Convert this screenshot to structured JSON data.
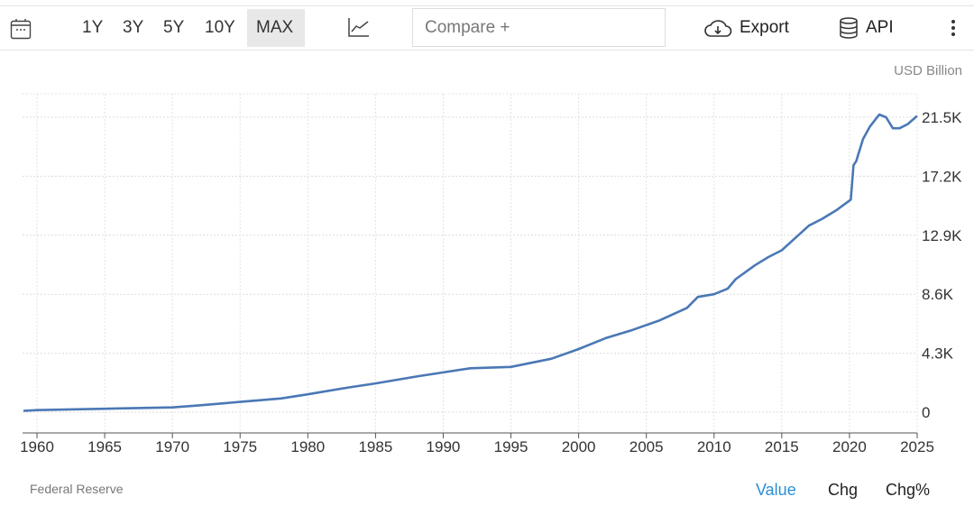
{
  "toolbar": {
    "calendar_icon": "calendar-icon",
    "ranges": [
      "1Y",
      "3Y",
      "5Y",
      "10Y",
      "MAX"
    ],
    "active_range": "MAX",
    "chart_type_icon": "line-chart-icon",
    "compare_placeholder": "Compare +",
    "export_label": "Export",
    "api_label": "API"
  },
  "unit": "USD Billion",
  "source": "Federal Reserve",
  "tabs": [
    "Value",
    "Chg",
    "Chg%"
  ],
  "active_tab": "Value",
  "colors": {
    "line": "#4a78b5",
    "active_tab": "#2a8fd8",
    "grid": "#dddddd"
  },
  "chart_data": {
    "type": "line",
    "title": "",
    "xlabel": "",
    "ylabel": "USD Billion",
    "xlim": [
      1959,
      2025.3
    ],
    "ylim": [
      0,
      21.5
    ],
    "y_ticks": [
      0,
      4.3,
      8.6,
      12.9,
      17.2,
      21.5
    ],
    "y_tick_labels": [
      "0",
      "4.3K",
      "8.6K",
      "12.9K",
      "17.2K",
      "21.5K"
    ],
    "x_ticks": [
      1960,
      1965,
      1970,
      1975,
      1980,
      1985,
      1990,
      1995,
      2000,
      2005,
      2010,
      2015,
      2020,
      2025
    ],
    "grid": true,
    "y_axis_side": "right",
    "series": [
      {
        "x": [
          1959,
          1960,
          1965,
          1970,
          1972,
          1975,
          1978,
          1980,
          1983,
          1985,
          1988,
          1990,
          1992,
          1995,
          1998,
          2000,
          2002,
          2004,
          2006,
          2008,
          2008.8,
          2010,
          2011,
          2011.6,
          2013,
          2014,
          2015,
          2016,
          2017,
          2018,
          2019,
          2020.1,
          2020.3,
          2020.5,
          2021,
          2021.5,
          2022.2,
          2022.7,
          2023.2,
          2023.7,
          2024.3,
          2025
        ],
        "values": [
          0.1,
          0.15,
          0.25,
          0.35,
          0.5,
          0.75,
          1.0,
          1.3,
          1.8,
          2.1,
          2.6,
          2.9,
          3.2,
          3.3,
          3.9,
          4.6,
          5.4,
          6.0,
          6.7,
          7.6,
          8.4,
          8.6,
          9.0,
          9.7,
          10.7,
          11.3,
          11.8,
          12.7,
          13.6,
          14.1,
          14.7,
          15.5,
          18.0,
          18.3,
          19.9,
          20.8,
          21.7,
          21.5,
          20.7,
          20.7,
          21.0,
          21.6
        ]
      }
    ]
  }
}
